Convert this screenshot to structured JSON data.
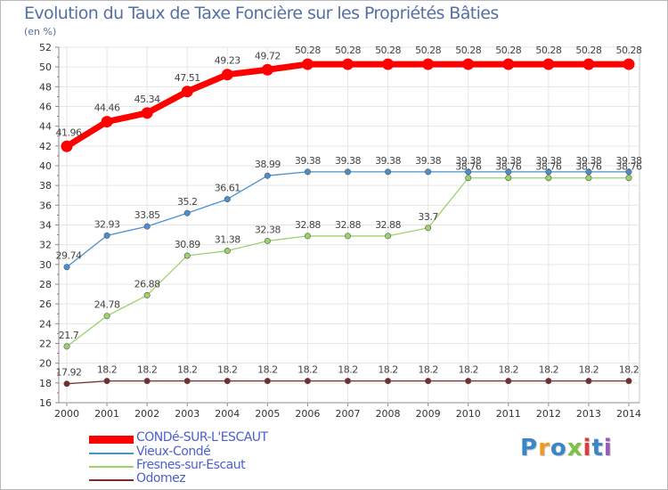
{
  "title": "Evolution du Taux de Taxe Foncière sur les Propriétés Bâties",
  "subtitle": "(en %)",
  "chart_data": {
    "type": "line",
    "title": "Evolution du Taux de Taxe Foncière sur les Propriétés Bâties",
    "ylabel": "(en %)",
    "xlabel": "",
    "x": [
      "2000",
      "2001",
      "2002",
      "2003",
      "2004",
      "2005",
      "2006",
      "2007",
      "2008",
      "2009",
      "2010",
      "2011",
      "2012",
      "2013",
      "2014"
    ],
    "ylim": [
      16,
      52
    ],
    "yticks": [
      16,
      18,
      20,
      22,
      24,
      26,
      28,
      30,
      32,
      34,
      36,
      38,
      40,
      42,
      44,
      46,
      48,
      50,
      52
    ],
    "grid": true,
    "legend_position": "bottom-left",
    "series": [
      {
        "name": "CONDé-SUR-L'ESCAUT",
        "color": "#ff0000",
        "values": [
          41.96,
          44.46,
          45.34,
          47.51,
          49.23,
          49.72,
          50.28,
          50.28,
          50.28,
          50.28,
          50.28,
          50.28,
          50.28,
          50.28,
          50.28
        ],
        "labels": [
          "41.96",
          "44.46",
          "45.34",
          "47.51",
          "49.23",
          "49.72",
          "50.28",
          "50.28",
          "50.28",
          "50.28",
          "50.28",
          "50.28",
          "50.28",
          "50.28",
          "50.28"
        ]
      },
      {
        "name": "Vieux-Condé",
        "color": "#4a90d0",
        "values": [
          29.74,
          32.93,
          33.85,
          35.2,
          36.61,
          38.99,
          39.38,
          39.38,
          39.38,
          39.38,
          39.38,
          39.38,
          39.38,
          39.38,
          39.38
        ],
        "labels": [
          "29.74",
          "32.93",
          "33.85",
          "35.2",
          "36.61",
          "38.99",
          "39.38",
          "39.38",
          "39.38",
          "39.38",
          "39.38",
          "39.38",
          "39.38",
          "39.38",
          "39.38"
        ]
      },
      {
        "name": "Fresnes-sur-Escaut",
        "color": "#9bd36b",
        "values": [
          21.7,
          24.78,
          26.88,
          30.89,
          31.38,
          32.38,
          32.88,
          32.88,
          32.88,
          33.7,
          38.76,
          38.76,
          38.76,
          38.76,
          38.76
        ],
        "labels": [
          "21.7",
          "24.78",
          "26.88",
          "30.89",
          "31.38",
          "32.38",
          "32.88",
          "32.88",
          "32.88",
          "33.7",
          "38.76",
          "38.76",
          "38.76",
          "38.76",
          "38.76"
        ]
      },
      {
        "name": "Odomez",
        "color": "#7a2b2b",
        "values": [
          17.92,
          18.2,
          18.2,
          18.2,
          18.2,
          18.2,
          18.2,
          18.2,
          18.2,
          18.2,
          18.2,
          18.2,
          18.2,
          18.2,
          18.2
        ],
        "labels": [
          "17.92",
          "18.2",
          "18.2",
          "18.2",
          "18.2",
          "18.2",
          "18.2",
          "18.2",
          "18.2",
          "18.2",
          "18.2",
          "18.2",
          "18.2",
          "18.2",
          "18.2"
        ]
      }
    ]
  },
  "logo": {
    "text": "Proxiti",
    "letters": [
      "P",
      "r",
      "o",
      "x",
      "i",
      "t",
      "i"
    ],
    "colors": [
      "#3a86c8",
      "#f29a1f",
      "#3a86c8",
      "#7cc243",
      "#e23b3b",
      "#3a86c8",
      "#9b59b6"
    ]
  }
}
